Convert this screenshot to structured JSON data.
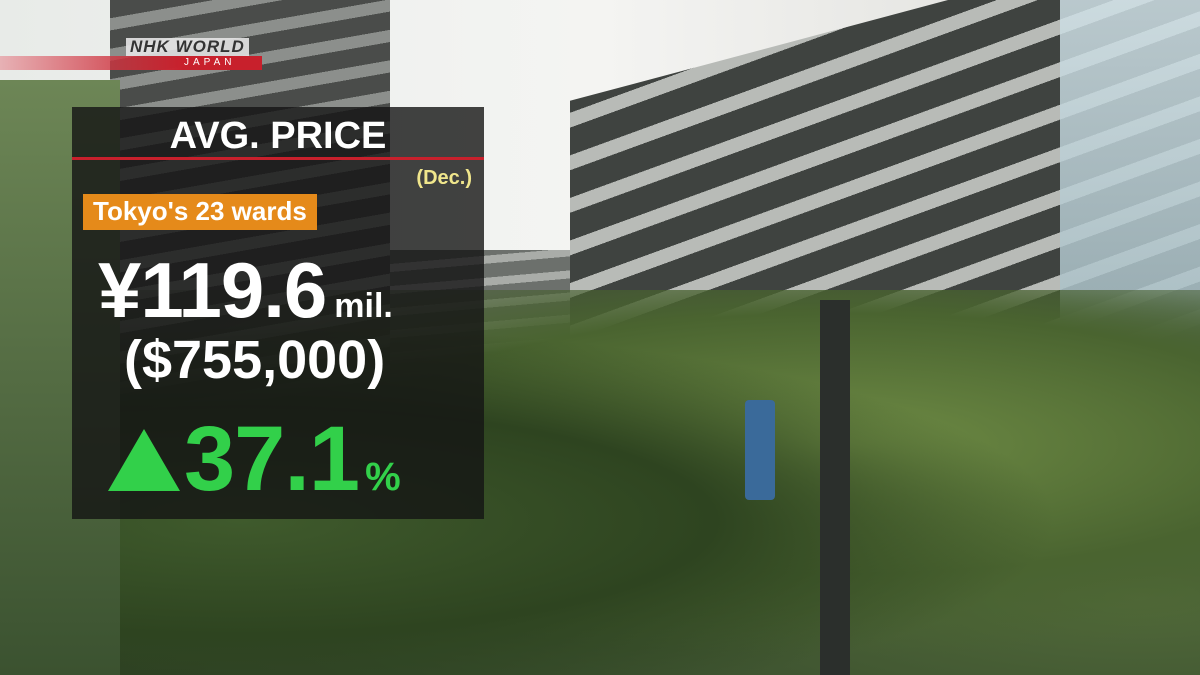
{
  "broadcaster": {
    "logo_text": "NHK WORLD",
    "logo_sub": "JAPAN",
    "accent": "#c8202c"
  },
  "graphic": {
    "title": "AVG. PRICE",
    "period": "(Dec.)",
    "region": "Tokyo's 23 wards",
    "price_value": "¥119.6",
    "price_unit": "mil.",
    "price_usd": "($755,000)",
    "change_direction": "up-triangle-icon",
    "change_value": "37.1",
    "change_unit": "%",
    "colors": {
      "region_badge": "#e58a1a",
      "change": "#32d04a",
      "period": "#f0e68c"
    }
  }
}
